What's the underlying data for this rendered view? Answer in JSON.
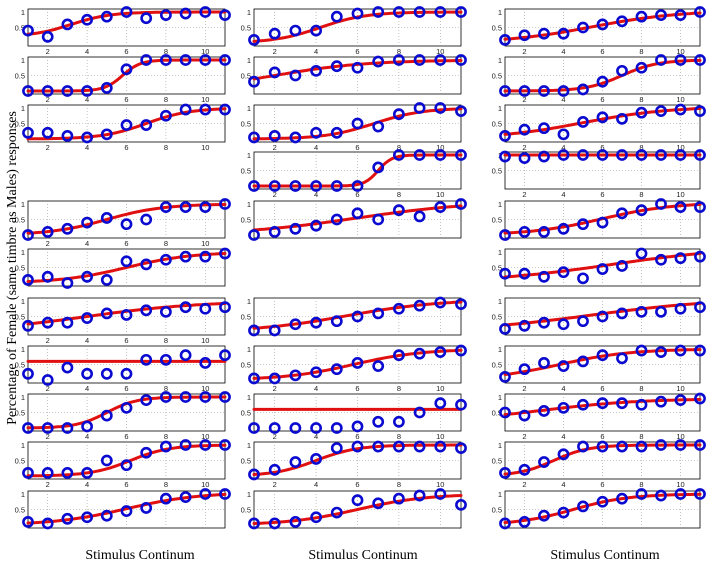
{
  "figure": {
    "ylabel": "Percentage of Female (same timbre as Males) responses",
    "xlabel": "Stimulus Continum"
  },
  "chart_data": {
    "type": "scatter",
    "title": "",
    "xlabel": "Stimulus Continum",
    "ylabel": "Percentage of Female (same timbre as Males) responses",
    "xlim": [
      1,
      11
    ],
    "ylim": [
      0,
      1
    ],
    "x": [
      1,
      2,
      3,
      4,
      5,
      6,
      7,
      8,
      9,
      10,
      11
    ],
    "xticks": [
      2,
      4,
      6,
      8,
      10
    ],
    "yticks": [
      0.5,
      1
    ],
    "ytick_labels": [
      "0.5",
      "1"
    ],
    "columns": [
      {
        "panels": [
          {
            "row": 0,
            "points": [
              0.4,
              0.2,
              0.6,
              0.75,
              0.85,
              1.0,
              0.8,
              0.9,
              0.95,
              1.0,
              0.9
            ],
            "fit": {
              "type": "sigmoid",
              "bottom": 0.2,
              "top": 1.0,
              "mid": 3.2,
              "slope": 1.0
            },
            "x_labels": true
          },
          {
            "row": 1,
            "points": [
              0.0,
              0.0,
              0.0,
              0.0,
              0.1,
              0.7,
              1.0,
              1.0,
              1.0,
              1.0,
              1.0
            ],
            "fit": {
              "type": "sigmoid",
              "bottom": 0.0,
              "top": 1.0,
              "mid": 5.8,
              "slope": 2.2
            },
            "x_labels": true
          },
          {
            "row": 2,
            "points": [
              0.2,
              0.2,
              0.1,
              0.05,
              0.15,
              0.45,
              0.45,
              0.75,
              0.95,
              0.95,
              0.95
            ],
            "fit": {
              "type": "sigmoid",
              "bottom": 0.0,
              "top": 1.0,
              "mid": 7.0,
              "slope": 0.9
            },
            "x_labels": true
          },
          {
            "row": 4,
            "points": [
              0.0,
              0.1,
              0.2,
              0.4,
              0.55,
              0.35,
              0.5,
              0.9,
              0.9,
              0.9,
              1.0
            ],
            "fit": {
              "type": "sigmoid",
              "bottom": 0.0,
              "top": 1.0,
              "mid": 5.0,
              "slope": 0.7
            },
            "x_labels": true
          },
          {
            "row": 5,
            "points": [
              0.1,
              0.2,
              0.0,
              0.2,
              0.1,
              0.7,
              0.6,
              0.75,
              0.85,
              0.85,
              0.95
            ],
            "fit": {
              "type": "sigmoid",
              "bottom": 0.0,
              "top": 1.0,
              "mid": 6.0,
              "slope": 0.6
            },
            "x_labels": false
          },
          {
            "row": 6,
            "points": [
              0.2,
              0.3,
              0.3,
              0.45,
              0.6,
              0.55,
              0.7,
              0.65,
              0.8,
              0.75,
              0.8
            ],
            "fit": {
              "type": "sigmoid",
              "bottom": 0.0,
              "top": 1.0,
              "mid": 4.0,
              "slope": 0.35
            },
            "x_labels": true
          },
          {
            "row": 7,
            "points": [
              0.2,
              0.0,
              0.4,
              0.2,
              0.2,
              0.2,
              0.65,
              0.65,
              0.8,
              0.55,
              0.8
            ],
            "fit": {
              "type": "flat",
              "value": 0.6
            },
            "x_labels": true
          },
          {
            "row": 8,
            "points": [
              0.0,
              0.0,
              0.0,
              0.05,
              0.4,
              0.65,
              0.9,
              1.0,
              1.0,
              1.0,
              1.0
            ],
            "fit": {
              "type": "sigmoid",
              "bottom": 0.0,
              "top": 1.0,
              "mid": 5.0,
              "slope": 1.3
            },
            "x_labels": true
          },
          {
            "row": 9,
            "points": [
              0.1,
              0.1,
              0.1,
              0.1,
              0.5,
              0.35,
              0.75,
              0.95,
              1.0,
              1.0,
              1.0
            ],
            "fit": {
              "type": "sigmoid",
              "bottom": 0.0,
              "top": 1.0,
              "mid": 6.2,
              "slope": 1.0
            },
            "x_labels": true
          },
          {
            "row": 10,
            "points": [
              0.1,
              0.05,
              0.2,
              0.25,
              0.3,
              0.45,
              0.55,
              0.85,
              0.9,
              1.0,
              1.0
            ],
            "fit": {
              "type": "sigmoid",
              "bottom": 0.0,
              "top": 1.05,
              "mid": 6.0,
              "slope": 0.55
            },
            "x_labels": false
          }
        ]
      },
      {
        "panels": [
          {
            "row": 0,
            "points": [
              0.1,
              0.3,
              0.4,
              0.4,
              0.85,
              0.95,
              1.0,
              1.0,
              1.0,
              1.0,
              1.0
            ],
            "fit": {
              "type": "sigmoid",
              "bottom": 0.0,
              "top": 1.0,
              "mid": 4.2,
              "slope": 0.9
            },
            "x_labels": true
          },
          {
            "row": 1,
            "points": [
              0.3,
              0.6,
              0.5,
              0.65,
              0.8,
              0.75,
              0.95,
              1.0,
              1.0,
              1.0,
              1.0
            ],
            "fit": {
              "type": "sigmoid",
              "bottom": 0.0,
              "top": 1.0,
              "mid": 2.0,
              "slope": 0.45
            },
            "x_labels": false
          },
          {
            "row": 2,
            "points": [
              0.05,
              0.1,
              0.05,
              0.2,
              0.2,
              0.5,
              0.4,
              0.8,
              1.0,
              1.0,
              0.9
            ],
            "fit": {
              "type": "sigmoid",
              "bottom": 0.0,
              "top": 1.0,
              "mid": 6.8,
              "slope": 0.85
            },
            "x_labels": true
          },
          {
            "row": 3,
            "points": [
              0.0,
              0.0,
              0.0,
              0.0,
              0.0,
              0.0,
              0.6,
              1.0,
              1.0,
              1.0,
              1.0
            ],
            "fit": {
              "type": "sigmoid",
              "bottom": 0.0,
              "top": 1.0,
              "mid": 7.0,
              "slope": 3.0
            },
            "x_labels": true
          },
          {
            "row": 4,
            "points": [
              0.0,
              0.1,
              0.2,
              0.3,
              0.5,
              0.7,
              0.5,
              0.8,
              0.6,
              0.9,
              1.0
            ],
            "fit": {
              "type": "sigmoid",
              "bottom": 0.0,
              "top": 1.1,
              "mid": 6.0,
              "slope": 0.35
            },
            "x_labels": false
          },
          {
            "row": 6,
            "points": [
              0.05,
              0.05,
              0.25,
              0.3,
              0.35,
              0.5,
              0.6,
              0.75,
              0.85,
              0.95,
              0.9
            ],
            "fit": {
              "type": "sigmoid",
              "bottom": 0.0,
              "top": 1.05,
              "mid": 5.5,
              "slope": 0.45
            },
            "x_labels": false
          },
          {
            "row": 7,
            "points": [
              0.05,
              0.05,
              0.15,
              0.25,
              0.35,
              0.55,
              0.45,
              0.8,
              0.85,
              0.9,
              0.95
            ],
            "fit": {
              "type": "sigmoid",
              "bottom": 0.0,
              "top": 1.0,
              "mid": 5.8,
              "slope": 0.6
            },
            "x_labels": true
          },
          {
            "row": 8,
            "points": [
              0.0,
              0.0,
              0.0,
              0.0,
              0.0,
              0.05,
              0.2,
              0.2,
              0.5,
              0.8,
              0.75
            ],
            "fit": {
              "type": "flat",
              "value": 0.6
            },
            "x_labels": true
          },
          {
            "row": 9,
            "points": [
              0.05,
              0.2,
              0.45,
              0.55,
              0.9,
              0.95,
              0.95,
              0.95,
              0.95,
              0.95,
              0.9
            ],
            "fit": {
              "type": "sigmoid",
              "bottom": 0.0,
              "top": 1.0,
              "mid": 4.0,
              "slope": 1.0
            },
            "x_labels": true
          },
          {
            "row": 10,
            "points": [
              0.05,
              0.05,
              0.1,
              0.25,
              0.4,
              0.8,
              0.7,
              0.85,
              0.95,
              1.0,
              0.65
            ],
            "fit": {
              "type": "sigmoid",
              "bottom": 0.0,
              "top": 1.0,
              "mid": 6.0,
              "slope": 0.6
            },
            "x_labels": false
          }
        ]
      },
      {
        "panels": [
          {
            "row": 0,
            "points": [
              0.1,
              0.25,
              0.3,
              0.3,
              0.5,
              0.6,
              0.7,
              0.85,
              0.9,
              0.9,
              1.0
            ],
            "fit": {
              "type": "sigmoid",
              "bottom": 0.0,
              "top": 1.05,
              "mid": 5.5,
              "slope": 0.45
            },
            "x_labels": true
          },
          {
            "row": 1,
            "points": [
              0.0,
              0.0,
              0.0,
              0.0,
              0.05,
              0.3,
              0.65,
              0.75,
              1.0,
              1.0,
              1.0
            ],
            "fit": {
              "type": "sigmoid",
              "bottom": 0.0,
              "top": 1.0,
              "mid": 7.0,
              "slope": 1.1
            },
            "x_labels": true
          },
          {
            "row": 2,
            "points": [
              0.1,
              0.3,
              0.35,
              0.15,
              0.55,
              0.7,
              0.65,
              0.85,
              0.9,
              0.95,
              0.9
            ],
            "fit": {
              "type": "sigmoid",
              "bottom": 0.0,
              "top": 1.05,
              "mid": 5.0,
              "slope": 0.45
            },
            "x_labels": true
          },
          {
            "row": 3,
            "points": [
              0.95,
              0.9,
              0.95,
              1.0,
              1.0,
              1.0,
              1.0,
              1.0,
              1.0,
              1.0,
              1.0
            ],
            "fit": {
              "type": "flat",
              "value": 1.0
            },
            "x_labels": true
          },
          {
            "row": 4,
            "points": [
              0.0,
              0.1,
              0.1,
              0.2,
              0.35,
              0.4,
              0.7,
              0.8,
              1.0,
              0.9,
              0.9
            ],
            "fit": {
              "type": "sigmoid",
              "bottom": 0.0,
              "top": 1.05,
              "mid": 6.0,
              "slope": 0.55
            },
            "x_labels": false
          },
          {
            "row": 5,
            "points": [
              0.3,
              0.3,
              0.2,
              0.35,
              0.15,
              0.45,
              0.55,
              0.95,
              0.75,
              0.8,
              0.85
            ],
            "fit": {
              "type": "sigmoid",
              "bottom": 0.0,
              "top": 1.2,
              "mid": 6.5,
              "slope": 0.3
            },
            "x_labels": false
          },
          {
            "row": 6,
            "points": [
              0.1,
              0.2,
              0.3,
              0.25,
              0.35,
              0.5,
              0.6,
              0.65,
              0.65,
              0.75,
              0.8
            ],
            "fit": {
              "type": "sigmoid",
              "bottom": 0.0,
              "top": 1.1,
              "mid": 5.5,
              "slope": 0.3
            },
            "x_labels": false
          },
          {
            "row": 7,
            "points": [
              0.1,
              0.35,
              0.55,
              0.45,
              0.6,
              0.8,
              0.7,
              0.95,
              0.9,
              0.95,
              0.95
            ],
            "fit": {
              "type": "sigmoid",
              "bottom": 0.0,
              "top": 1.0,
              "mid": 3.8,
              "slope": 0.55
            },
            "x_labels": true
          },
          {
            "row": 8,
            "points": [
              0.5,
              0.4,
              0.55,
              0.65,
              0.75,
              0.8,
              0.8,
              0.75,
              0.85,
              0.9,
              0.95
            ],
            "fit": {
              "type": "sigmoid",
              "bottom": 0.2,
              "top": 0.95,
              "mid": 3.0,
              "slope": 0.4
            },
            "x_labels": true
          },
          {
            "row": 9,
            "points": [
              0.1,
              0.2,
              0.45,
              0.7,
              0.95,
              0.95,
              0.95,
              0.95,
              1.0,
              1.0,
              1.0
            ],
            "fit": {
              "type": "sigmoid",
              "bottom": 0.0,
              "top": 1.0,
              "mid": 3.5,
              "slope": 1.1
            },
            "x_labels": true
          },
          {
            "row": 10,
            "points": [
              0.05,
              0.1,
              0.3,
              0.4,
              0.6,
              0.75,
              0.85,
              1.0,
              0.95,
              1.0,
              1.0
            ],
            "fit": {
              "type": "sigmoid",
              "bottom": 0.0,
              "top": 1.0,
              "mid": 4.5,
              "slope": 0.7
            },
            "x_labels": false
          }
        ]
      }
    ]
  }
}
